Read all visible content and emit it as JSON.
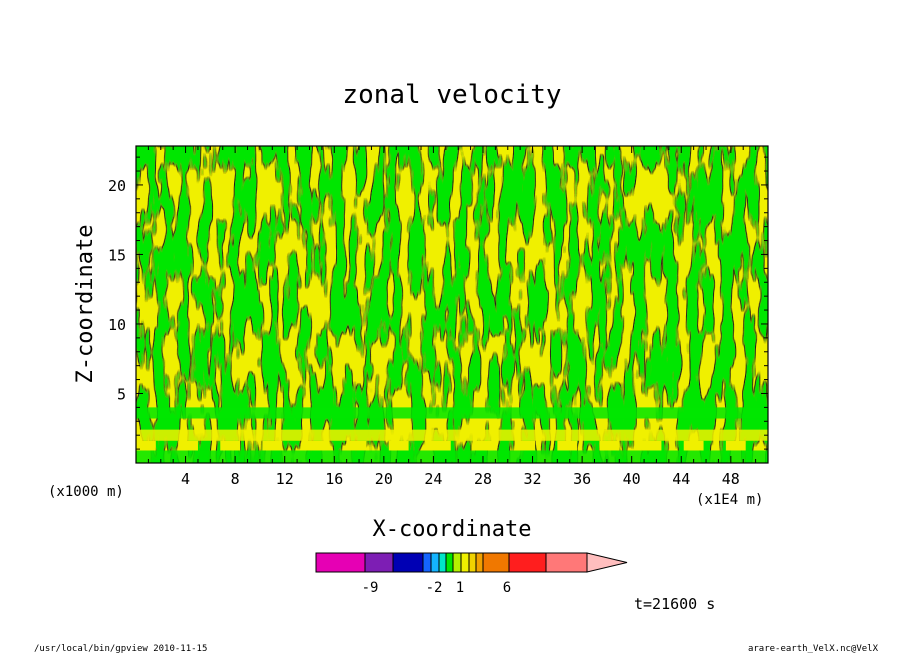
{
  "chart_data": {
    "type": "heatmap",
    "title": "zonal velocity",
    "xlabel": "X-coordinate",
    "ylabel": "Z-coordinate",
    "x_unit_left": "(x1000 m)",
    "x_unit_right": "(x1E4 m)",
    "xlim": [
      0,
      51
    ],
    "ylim": [
      0,
      22.8
    ],
    "x_ticks": [
      4,
      8,
      12,
      16,
      20,
      24,
      28,
      32,
      36,
      40,
      44,
      48
    ],
    "y_ticks": [
      5,
      10,
      15,
      20
    ],
    "dominant_fields": [
      {
        "level": "negative small",
        "color": "#00e600"
      },
      {
        "level": "positive small",
        "color": "#f0f000"
      }
    ],
    "colorbar": {
      "colors": [
        "#e600b4",
        "#7d1eb4",
        "#0000b4",
        "#1464ff",
        "#14b4ff",
        "#00e6c8",
        "#00e600",
        "#b4f000",
        "#f0f000",
        "#f0d200",
        "#f0a000",
        "#f07800",
        "#ff1e1e",
        "#ff7878",
        "#ffbebe"
      ],
      "labels": [
        "-9",
        "-2",
        "1",
        "6"
      ]
    },
    "time_label": "t=21600 s"
  },
  "footer": {
    "left": "/usr/local/bin/gpview  2010-11-15",
    "right": "arare-earth_VelX.nc@VelX"
  }
}
